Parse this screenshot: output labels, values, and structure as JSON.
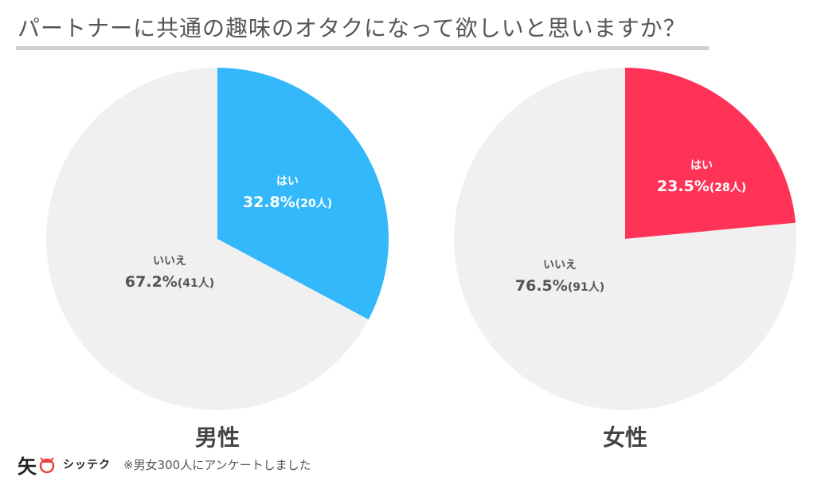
{
  "title": "パートナーに共通の趣味のオタクになって欲しいと思いますか？",
  "colors": {
    "male_yes": "#33b8fb",
    "female_yes": "#ff3358",
    "no": "#f0f0f0",
    "label_on_color": "#ffffff",
    "label_on_gray": "#555555"
  },
  "chart_data": [
    {
      "type": "pie",
      "title": "男性",
      "slices": [
        {
          "label": "はい",
          "percent": 32.8,
          "count_label": "(20人)",
          "value": 20
        },
        {
          "label": "いいえ",
          "percent": 67.2,
          "count_label": "(41人)",
          "value": 41
        }
      ]
    },
    {
      "type": "pie",
      "title": "女性",
      "slices": [
        {
          "label": "はい",
          "percent": 23.5,
          "count_label": "(28人)",
          "value": 28
        },
        {
          "label": "いいえ",
          "percent": 76.5,
          "count_label": "(91人)",
          "value": 91
        }
      ]
    }
  ],
  "footer": {
    "logo_char": "矢",
    "logo_text": "シッテク",
    "note": "※男女300人にアンケートしました"
  }
}
